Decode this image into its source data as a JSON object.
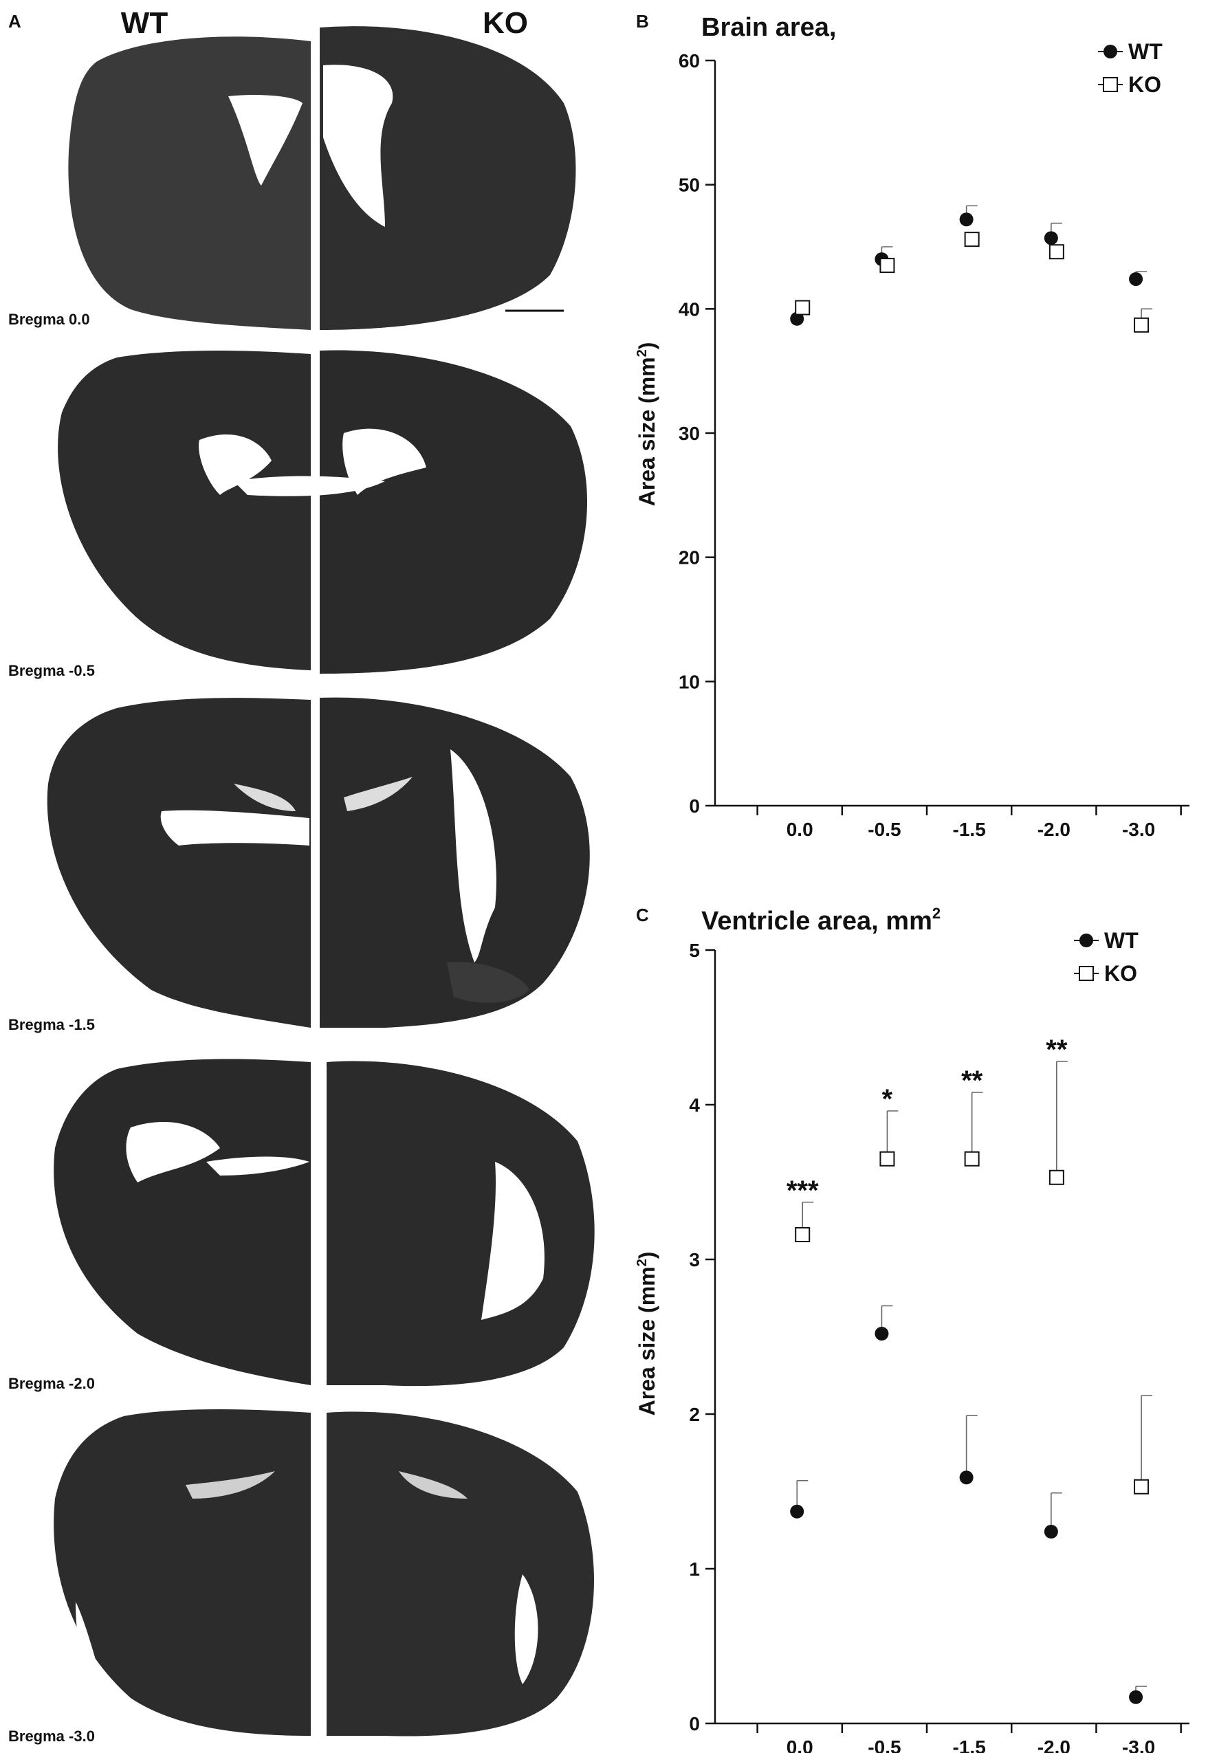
{
  "panel_a": {
    "letter": "A",
    "left_label": "WT",
    "right_label": "KO",
    "sections": [
      {
        "label": "Bregma 0.0"
      },
      {
        "label": "Bregma -0.5"
      },
      {
        "label": "Bregma -1.5"
      },
      {
        "label": "Bregma -2.0"
      },
      {
        "label": "Bregma -3.0"
      }
    ],
    "image_description_colors": {
      "tissue": "#2d2d2d",
      "ventricle": "#ffffff"
    }
  },
  "chart_data": [
    {
      "id": "brain",
      "panel_letter": "B",
      "type": "scatter",
      "title": "Brain area,",
      "title_suffix": "",
      "ylabel": "Area size (mm",
      "ylabel_sup": "2",
      "ylabel_close": ")",
      "categories": [
        "0.0",
        "-0.5",
        "-1.5",
        "-2.0",
        "-3.0"
      ],
      "ylim": [
        0,
        60
      ],
      "yticks": [
        "0",
        "10",
        "20",
        "30",
        "40",
        "50",
        "60"
      ],
      "legend_position": "top-right",
      "series": [
        {
          "name": "WT",
          "marker": "filled-circle",
          "values": [
            39.2,
            44.0,
            47.2,
            45.7,
            42.4
          ],
          "error": [
            0,
            1.0,
            1.1,
            1.2,
            0.6
          ]
        },
        {
          "name": "KO",
          "marker": "open-square",
          "values": [
            40.1,
            43.5,
            45.6,
            44.6,
            38.7
          ],
          "error": [
            0,
            0,
            0,
            0,
            1.3
          ]
        }
      ],
      "significance": [
        "",
        "",
        "",
        "",
        ""
      ]
    },
    {
      "id": "ventricle",
      "panel_letter": "C",
      "type": "scatter",
      "title": "Ventricle area, mm",
      "title_suffix": "2",
      "ylabel": "Area size (mm",
      "ylabel_sup": "2",
      "ylabel_close": ")",
      "categories": [
        "0.0",
        "-0.5",
        "-1.5",
        "-2.0",
        "-3.0"
      ],
      "ylim": [
        0,
        5
      ],
      "yticks": [
        "0",
        "1",
        "2",
        "3",
        "4",
        "5"
      ],
      "legend_position": "top-right",
      "series": [
        {
          "name": "WT",
          "marker": "filled-circle",
          "values": [
            1.37,
            2.52,
            1.59,
            1.24,
            0.17
          ],
          "error": [
            0.2,
            0.18,
            0.4,
            0.25,
            0.07
          ]
        },
        {
          "name": "KO",
          "marker": "open-square",
          "values": [
            3.16,
            3.65,
            3.65,
            3.53,
            1.53
          ],
          "error": [
            0.21,
            0.31,
            0.43,
            0.75,
            0.59
          ]
        }
      ],
      "significance": [
        "***",
        "*",
        "**",
        "**",
        ""
      ]
    }
  ],
  "colors": {
    "ink": "#111111",
    "marker_fill_open": "#ffffff"
  }
}
